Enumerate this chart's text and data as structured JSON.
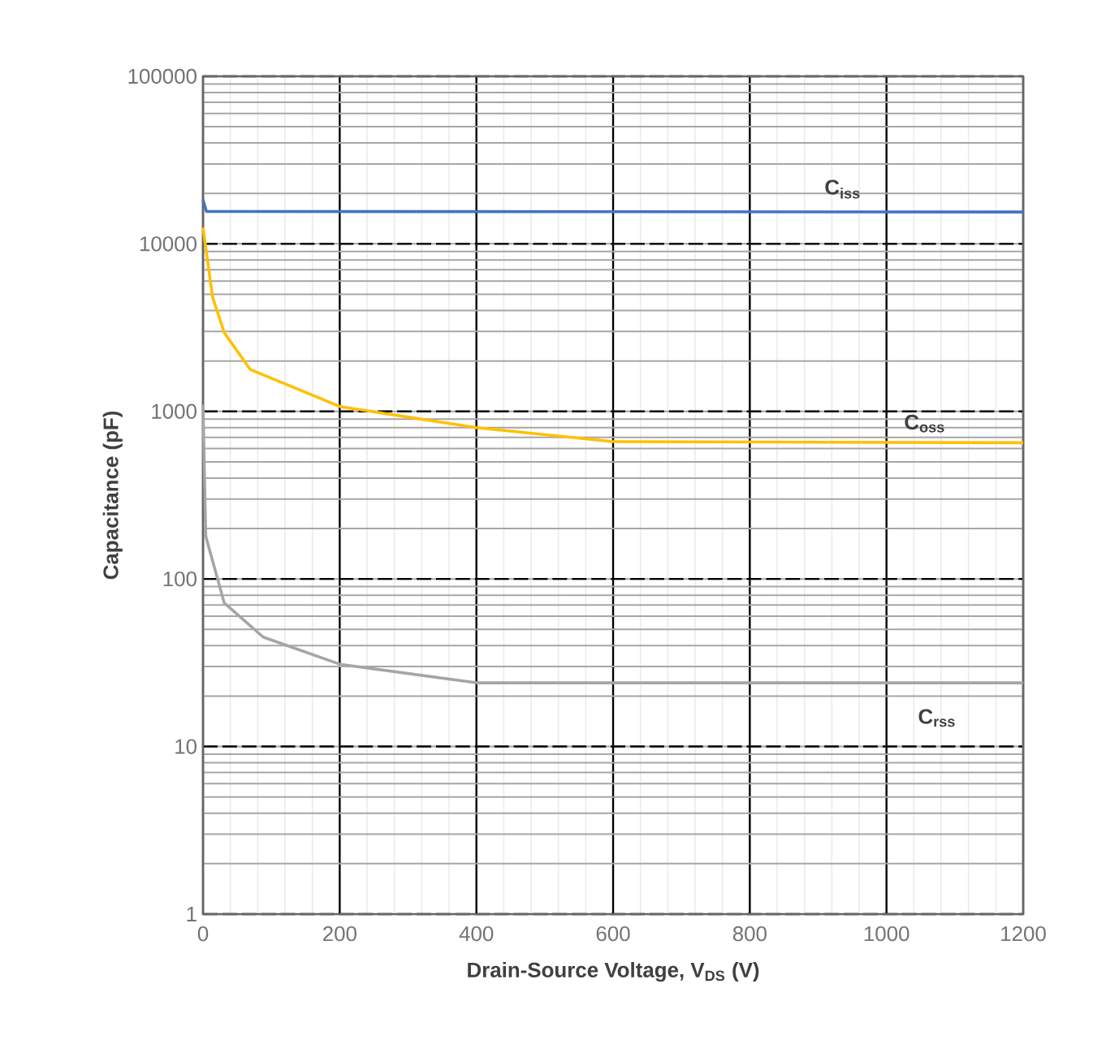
{
  "chart_data": {
    "type": "line",
    "xlabel": "**Drain-Source Voltage, V$_{DS}$ (V)**",
    "ylabel": "**Capacitance (pF)**",
    "log": "y",
    "grid": true,
    "xlim": [
      0,
      1200
    ],
    "ylim": [
      1,
      100000
    ],
    "xticks": [
      0,
      200,
      400,
      600,
      800,
      1000,
      1200
    ],
    "yticks": [
      1,
      10,
      100,
      1000,
      10000,
      100000
    ],
    "series": [
      {
        "name": "C$_{iss}$",
        "color": "#4472c4",
        "x": [
          0,
          5,
          1200
        ],
        "values": [
          18300,
          15600,
          15500
        ]
      },
      {
        "name": "C$_{oss}$",
        "color": "#ffc000",
        "x": [
          0,
          14,
          31,
          69,
          200,
          400,
          600,
          1200
        ],
        "values": [
          12500,
          4800,
          2950,
          1780,
          1070,
          800,
          660,
          650
        ]
      },
      {
        "name": "C$_{rss}$",
        "color": "#a5a5a5",
        "x": [
          0,
          4,
          31,
          88,
          200,
          400,
          1200
        ],
        "values": [
          1100,
          180,
          72,
          45,
          31,
          24,
          24
        ]
      }
    ]
  }
}
